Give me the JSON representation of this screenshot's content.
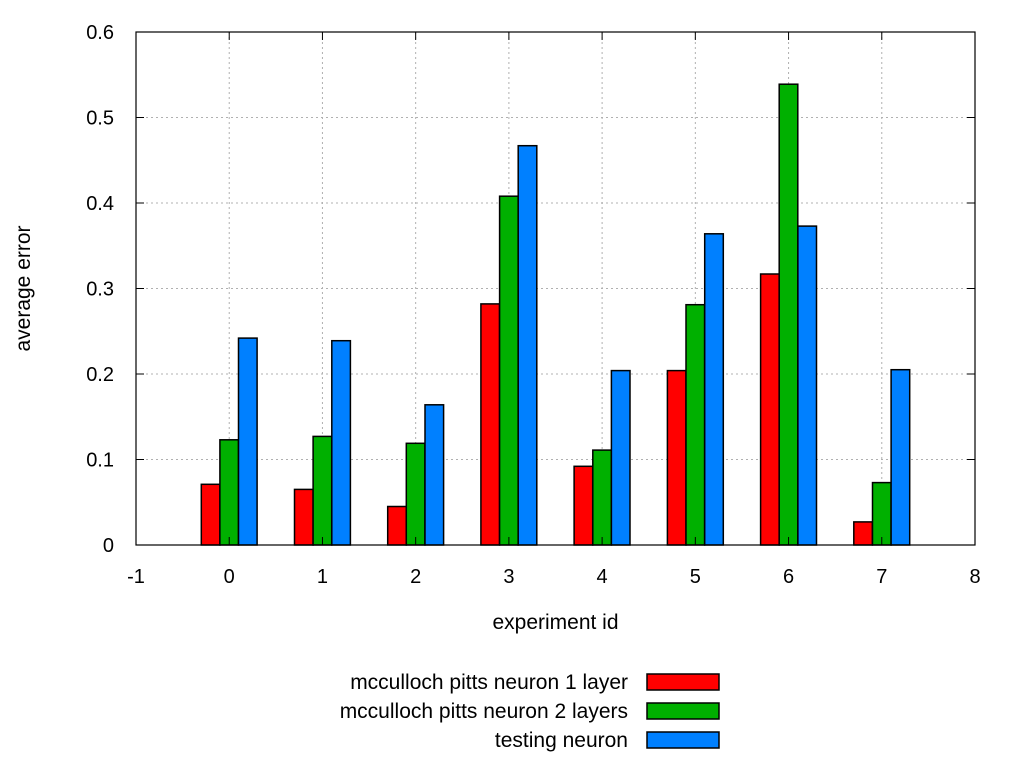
{
  "chart_data": {
    "type": "bar",
    "title": "",
    "xlabel": "experiment id",
    "ylabel": "average error",
    "categories": [
      0,
      1,
      2,
      3,
      4,
      5,
      6,
      7
    ],
    "xlim": [
      -1,
      8
    ],
    "ylim": [
      0,
      0.6
    ],
    "x_ticks": [
      "-1",
      "0",
      "1",
      "2",
      "3",
      "4",
      "5",
      "6",
      "7",
      "8"
    ],
    "y_ticks": [
      "0",
      "0.1",
      "0.2",
      "0.3",
      "0.4",
      "0.5",
      "0.6"
    ],
    "grid": true,
    "legend_position": "bottom-center",
    "series": [
      {
        "name": "mcculloch pitts neuron 1 layer",
        "color": "#ff0000",
        "values": [
          0.071,
          0.065,
          0.045,
          0.282,
          0.092,
          0.204,
          0.317,
          0.027
        ]
      },
      {
        "name": "mcculloch pitts neuron 2 layers",
        "color": "#00b000",
        "values": [
          0.123,
          0.127,
          0.119,
          0.408,
          0.111,
          0.281,
          0.539,
          0.073
        ]
      },
      {
        "name": "testing neuron",
        "color": "#0080ff",
        "values": [
          0.242,
          0.239,
          0.164,
          0.467,
          0.204,
          0.364,
          0.373,
          0.205
        ]
      }
    ]
  }
}
